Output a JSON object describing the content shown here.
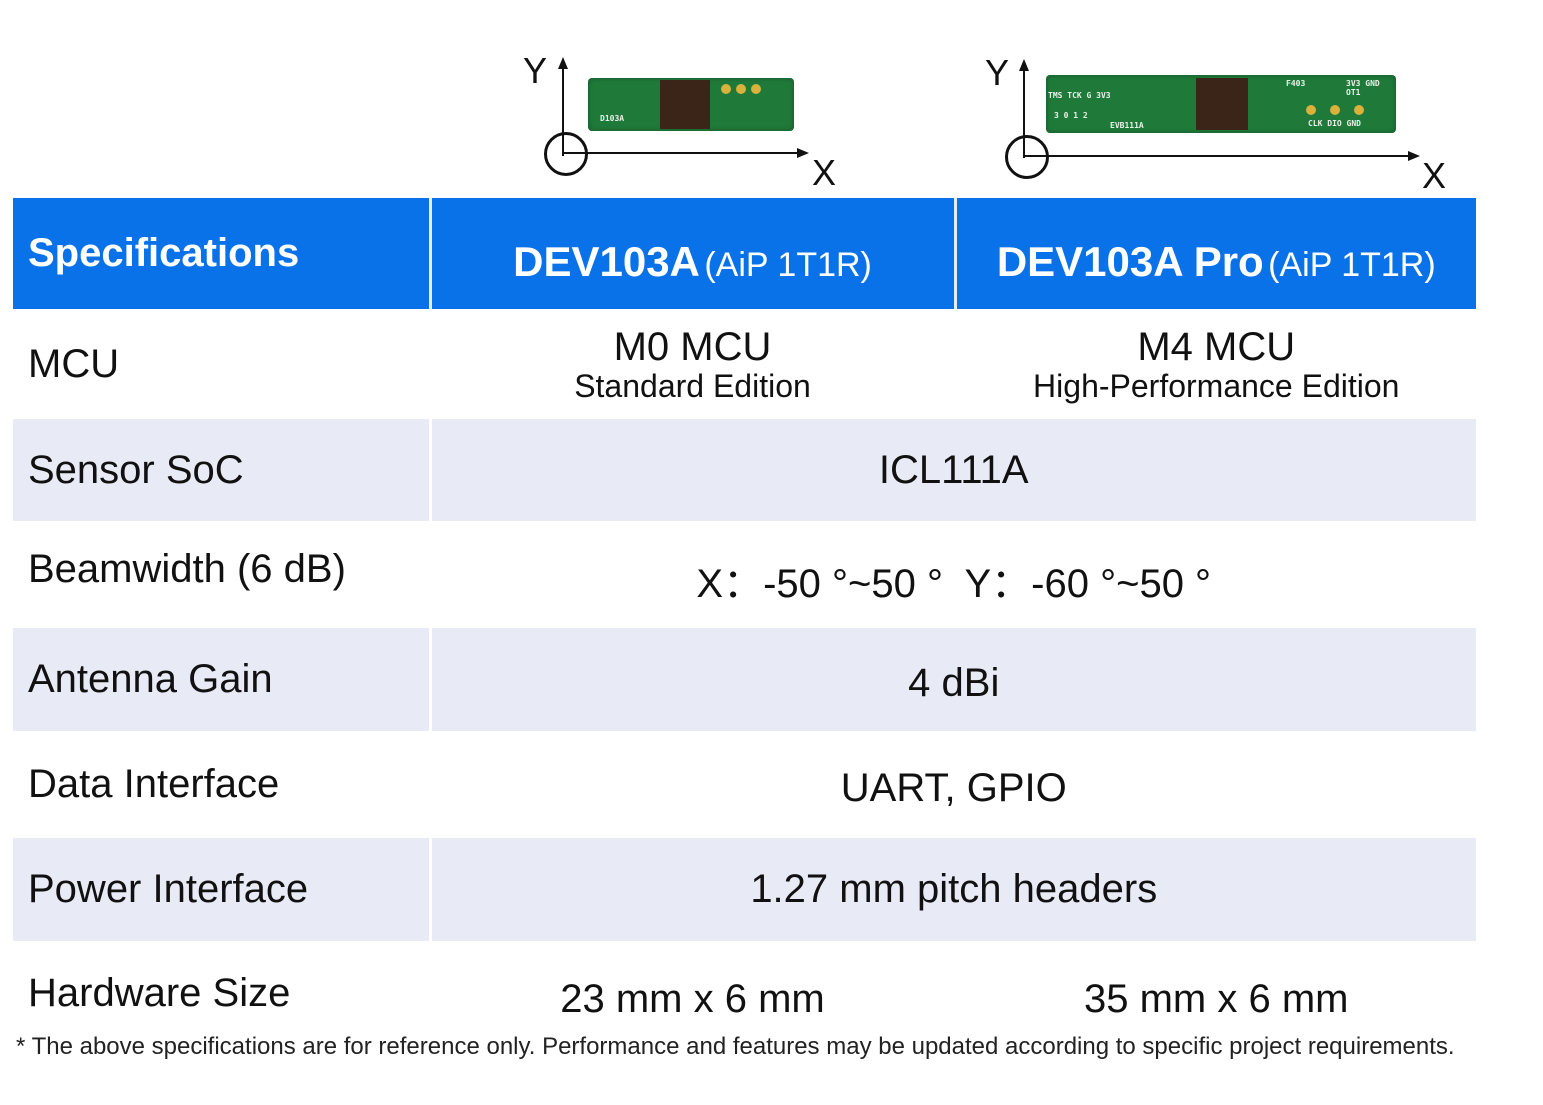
{
  "diagrams": [
    {
      "y_label": "Y",
      "x_label": "X",
      "board_silkscreen": [
        "D103A"
      ]
    },
    {
      "y_label": "Y",
      "x_label": "X",
      "board_silkscreen": [
        "TMS TCK G 3V3",
        "3 0 1 2",
        "EVB111A",
        "F403",
        "3V3 GND OT1",
        "CLK DIO GND"
      ]
    }
  ],
  "header": {
    "col1": "Specifications",
    "col2": {
      "name": "DEV103A",
      "note": "(AiP 1T1R)"
    },
    "col3": {
      "name": "DEV103A Pro",
      "note": "(AiP 1T1R)"
    }
  },
  "rows": [
    {
      "label": "MCU",
      "dev": {
        "main": "M0 MCU",
        "sub": "Standard Edition"
      },
      "pro": {
        "main": "M4 MCU",
        "sub": "High-Performance Edition"
      }
    },
    {
      "label": "Sensor SoC",
      "value": "ICL111A"
    },
    {
      "label": "Beamwidth (6 dB)",
      "value": "X：-50 °~50 °  Y：-60 °~50 °"
    },
    {
      "label": "Antenna Gain",
      "value": "4 dBi"
    },
    {
      "label": "Data Interface",
      "value": "UART, GPIO"
    },
    {
      "label": "Power Interface",
      "value": "1.27 mm pitch headers"
    },
    {
      "label": "Hardware Size",
      "dev": "23 mm x 6 mm",
      "pro": "35 mm x 6 mm"
    }
  ],
  "footnote": "* The above specifications are for reference only. Performance and features may be updated according to specific project requirements.",
  "colors": {
    "header": "#0a72e8",
    "alt_row": "#e8ebf5"
  }
}
